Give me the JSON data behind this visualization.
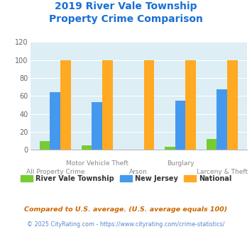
{
  "title_line1": "2019 River Vale Township",
  "title_line2": "Property Crime Comparison",
  "title_color": "#1a6fd4",
  "categories": [
    "All Property Crime",
    "Motor Vehicle Theft",
    "Arson",
    "Burglary",
    "Larceny & Theft"
  ],
  "labels_row1": [
    "",
    "Motor Vehicle Theft",
    "",
    "Burglary",
    ""
  ],
  "labels_row2": [
    "All Property Crime",
    "",
    "Arson",
    "",
    "Larceny & Theft"
  ],
  "river_vale": [
    10,
    5,
    0,
    3,
    12
  ],
  "new_jersey": [
    64,
    53,
    0,
    55,
    67
  ],
  "national": [
    100,
    100,
    100,
    100,
    100
  ],
  "river_vale_color": "#77cc33",
  "new_jersey_color": "#4499ee",
  "national_color": "#ffaa22",
  "bg_color": "#ddeef5",
  "ylim": [
    0,
    120
  ],
  "yticks": [
    0,
    20,
    40,
    60,
    80,
    100,
    120
  ],
  "legend_labels": [
    "River Vale Township",
    "New Jersey",
    "National"
  ],
  "legend_text_color": "#333333",
  "footnote1": "Compared to U.S. average. (U.S. average equals 100)",
  "footnote2": "© 2025 CityRating.com - https://www.cityrating.com/crime-statistics/",
  "footnote1_color": "#cc6600",
  "footnote2_color": "#5588cc"
}
